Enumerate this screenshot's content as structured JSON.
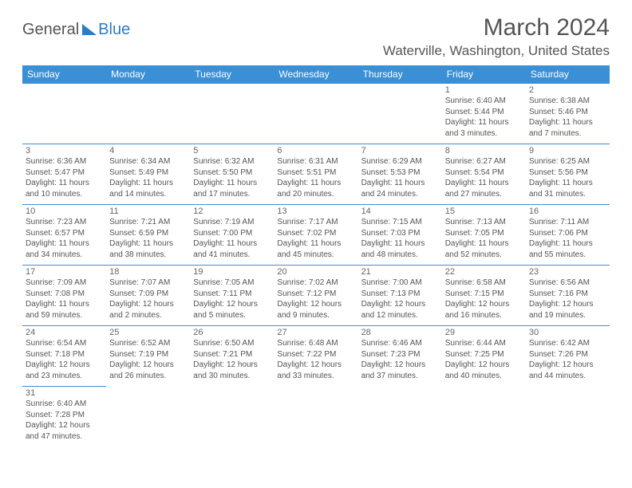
{
  "logo": {
    "general": "General",
    "blue": "Blue"
  },
  "title": "March 2024",
  "location": "Waterville, Washington, United States",
  "weekdays": [
    "Sunday",
    "Monday",
    "Tuesday",
    "Wednesday",
    "Thursday",
    "Friday",
    "Saturday"
  ],
  "colors": {
    "header_bg": "#3b8fd4",
    "header_text": "#ffffff",
    "border": "#3b8fd4",
    "text": "#555555",
    "logo_blue": "#2d7cc4"
  },
  "weeks": [
    [
      null,
      null,
      null,
      null,
      null,
      {
        "n": "1",
        "sr": "Sunrise: 6:40 AM",
        "ss": "Sunset: 5:44 PM",
        "dl": "Daylight: 11 hours and 3 minutes."
      },
      {
        "n": "2",
        "sr": "Sunrise: 6:38 AM",
        "ss": "Sunset: 5:46 PM",
        "dl": "Daylight: 11 hours and 7 minutes."
      }
    ],
    [
      {
        "n": "3",
        "sr": "Sunrise: 6:36 AM",
        "ss": "Sunset: 5:47 PM",
        "dl": "Daylight: 11 hours and 10 minutes."
      },
      {
        "n": "4",
        "sr": "Sunrise: 6:34 AM",
        "ss": "Sunset: 5:49 PM",
        "dl": "Daylight: 11 hours and 14 minutes."
      },
      {
        "n": "5",
        "sr": "Sunrise: 6:32 AM",
        "ss": "Sunset: 5:50 PM",
        "dl": "Daylight: 11 hours and 17 minutes."
      },
      {
        "n": "6",
        "sr": "Sunrise: 6:31 AM",
        "ss": "Sunset: 5:51 PM",
        "dl": "Daylight: 11 hours and 20 minutes."
      },
      {
        "n": "7",
        "sr": "Sunrise: 6:29 AM",
        "ss": "Sunset: 5:53 PM",
        "dl": "Daylight: 11 hours and 24 minutes."
      },
      {
        "n": "8",
        "sr": "Sunrise: 6:27 AM",
        "ss": "Sunset: 5:54 PM",
        "dl": "Daylight: 11 hours and 27 minutes."
      },
      {
        "n": "9",
        "sr": "Sunrise: 6:25 AM",
        "ss": "Sunset: 5:56 PM",
        "dl": "Daylight: 11 hours and 31 minutes."
      }
    ],
    [
      {
        "n": "10",
        "sr": "Sunrise: 7:23 AM",
        "ss": "Sunset: 6:57 PM",
        "dl": "Daylight: 11 hours and 34 minutes."
      },
      {
        "n": "11",
        "sr": "Sunrise: 7:21 AM",
        "ss": "Sunset: 6:59 PM",
        "dl": "Daylight: 11 hours and 38 minutes."
      },
      {
        "n": "12",
        "sr": "Sunrise: 7:19 AM",
        "ss": "Sunset: 7:00 PM",
        "dl": "Daylight: 11 hours and 41 minutes."
      },
      {
        "n": "13",
        "sr": "Sunrise: 7:17 AM",
        "ss": "Sunset: 7:02 PM",
        "dl": "Daylight: 11 hours and 45 minutes."
      },
      {
        "n": "14",
        "sr": "Sunrise: 7:15 AM",
        "ss": "Sunset: 7:03 PM",
        "dl": "Daylight: 11 hours and 48 minutes."
      },
      {
        "n": "15",
        "sr": "Sunrise: 7:13 AM",
        "ss": "Sunset: 7:05 PM",
        "dl": "Daylight: 11 hours and 52 minutes."
      },
      {
        "n": "16",
        "sr": "Sunrise: 7:11 AM",
        "ss": "Sunset: 7:06 PM",
        "dl": "Daylight: 11 hours and 55 minutes."
      }
    ],
    [
      {
        "n": "17",
        "sr": "Sunrise: 7:09 AM",
        "ss": "Sunset: 7:08 PM",
        "dl": "Daylight: 11 hours and 59 minutes."
      },
      {
        "n": "18",
        "sr": "Sunrise: 7:07 AM",
        "ss": "Sunset: 7:09 PM",
        "dl": "Daylight: 12 hours and 2 minutes."
      },
      {
        "n": "19",
        "sr": "Sunrise: 7:05 AM",
        "ss": "Sunset: 7:11 PM",
        "dl": "Daylight: 12 hours and 5 minutes."
      },
      {
        "n": "20",
        "sr": "Sunrise: 7:02 AM",
        "ss": "Sunset: 7:12 PM",
        "dl": "Daylight: 12 hours and 9 minutes."
      },
      {
        "n": "21",
        "sr": "Sunrise: 7:00 AM",
        "ss": "Sunset: 7:13 PM",
        "dl": "Daylight: 12 hours and 12 minutes."
      },
      {
        "n": "22",
        "sr": "Sunrise: 6:58 AM",
        "ss": "Sunset: 7:15 PM",
        "dl": "Daylight: 12 hours and 16 minutes."
      },
      {
        "n": "23",
        "sr": "Sunrise: 6:56 AM",
        "ss": "Sunset: 7:16 PM",
        "dl": "Daylight: 12 hours and 19 minutes."
      }
    ],
    [
      {
        "n": "24",
        "sr": "Sunrise: 6:54 AM",
        "ss": "Sunset: 7:18 PM",
        "dl": "Daylight: 12 hours and 23 minutes."
      },
      {
        "n": "25",
        "sr": "Sunrise: 6:52 AM",
        "ss": "Sunset: 7:19 PM",
        "dl": "Daylight: 12 hours and 26 minutes."
      },
      {
        "n": "26",
        "sr": "Sunrise: 6:50 AM",
        "ss": "Sunset: 7:21 PM",
        "dl": "Daylight: 12 hours and 30 minutes."
      },
      {
        "n": "27",
        "sr": "Sunrise: 6:48 AM",
        "ss": "Sunset: 7:22 PM",
        "dl": "Daylight: 12 hours and 33 minutes."
      },
      {
        "n": "28",
        "sr": "Sunrise: 6:46 AM",
        "ss": "Sunset: 7:23 PM",
        "dl": "Daylight: 12 hours and 37 minutes."
      },
      {
        "n": "29",
        "sr": "Sunrise: 6:44 AM",
        "ss": "Sunset: 7:25 PM",
        "dl": "Daylight: 12 hours and 40 minutes."
      },
      {
        "n": "30",
        "sr": "Sunrise: 6:42 AM",
        "ss": "Sunset: 7:26 PM",
        "dl": "Daylight: 12 hours and 44 minutes."
      }
    ],
    [
      {
        "n": "31",
        "sr": "Sunrise: 6:40 AM",
        "ss": "Sunset: 7:28 PM",
        "dl": "Daylight: 12 hours and 47 minutes."
      },
      null,
      null,
      null,
      null,
      null,
      null
    ]
  ]
}
